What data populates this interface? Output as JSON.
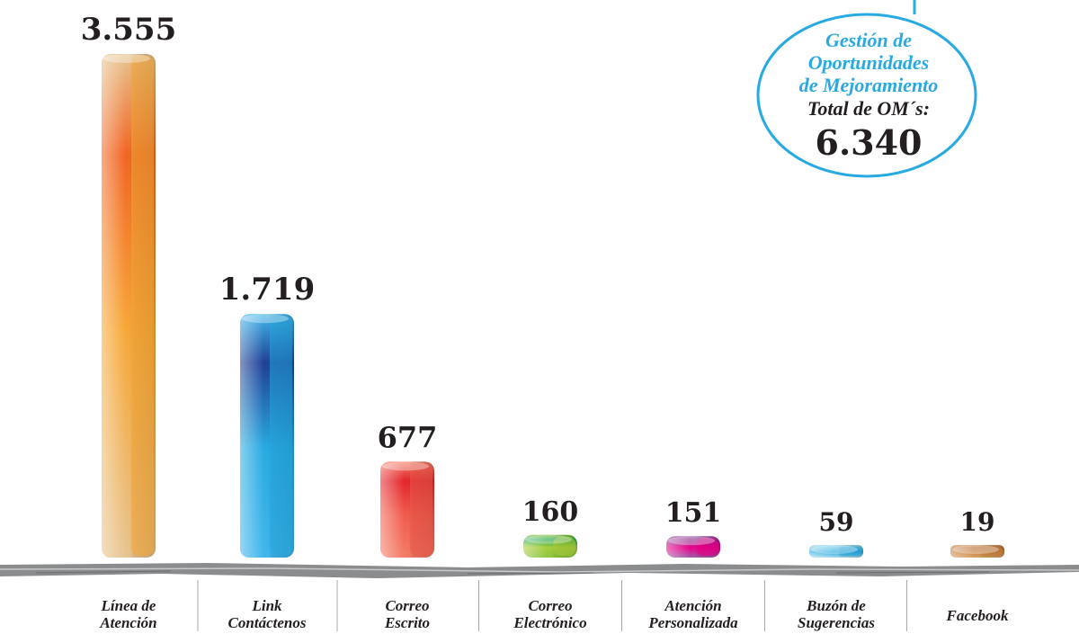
{
  "chart_data": {
    "type": "bar",
    "categories": [
      [
        "Línea de",
        "Atención"
      ],
      [
        "Link",
        "Contáctenos"
      ],
      [
        "Correo",
        "Escrito"
      ],
      [
        "Correo",
        "Electrónico"
      ],
      [
        "Atención",
        "Personalizada"
      ],
      [
        "Buzón de",
        "Sugerencias"
      ],
      [
        "Facebook"
      ]
    ],
    "values": [
      3555,
      1719,
      677,
      160,
      151,
      59,
      19
    ],
    "value_labels": [
      "3.555",
      "1.719",
      "677",
      "160",
      "151",
      "59",
      "19"
    ],
    "colors": [
      [
        "#e8c48f",
        "#f26522",
        "#f7a837"
      ],
      [
        "#3fb6ec",
        "#1c3f94",
        "#27aae1"
      ],
      [
        "#f47c66",
        "#e3242b",
        "#f15a4a"
      ],
      [
        "#8dc63f",
        "#1fa64b",
        "#a6ce39"
      ],
      [
        "#a05ca8",
        "#92278f",
        "#ec008c"
      ],
      [
        "#a6dcef",
        "#67c8e6",
        "#27aae1"
      ],
      [
        "#d9a066",
        "#b9703a",
        "#c9813c"
      ]
    ],
    "ylim": [
      0,
      3555
    ]
  },
  "badge": {
    "title_lines": [
      "Gestión de",
      "Oportunidades",
      "de Mejoramiento"
    ],
    "subtitle": "Total de OM´s:",
    "total": "6.340",
    "border_color": "#27aae1",
    "title_color": "#27aae1"
  }
}
